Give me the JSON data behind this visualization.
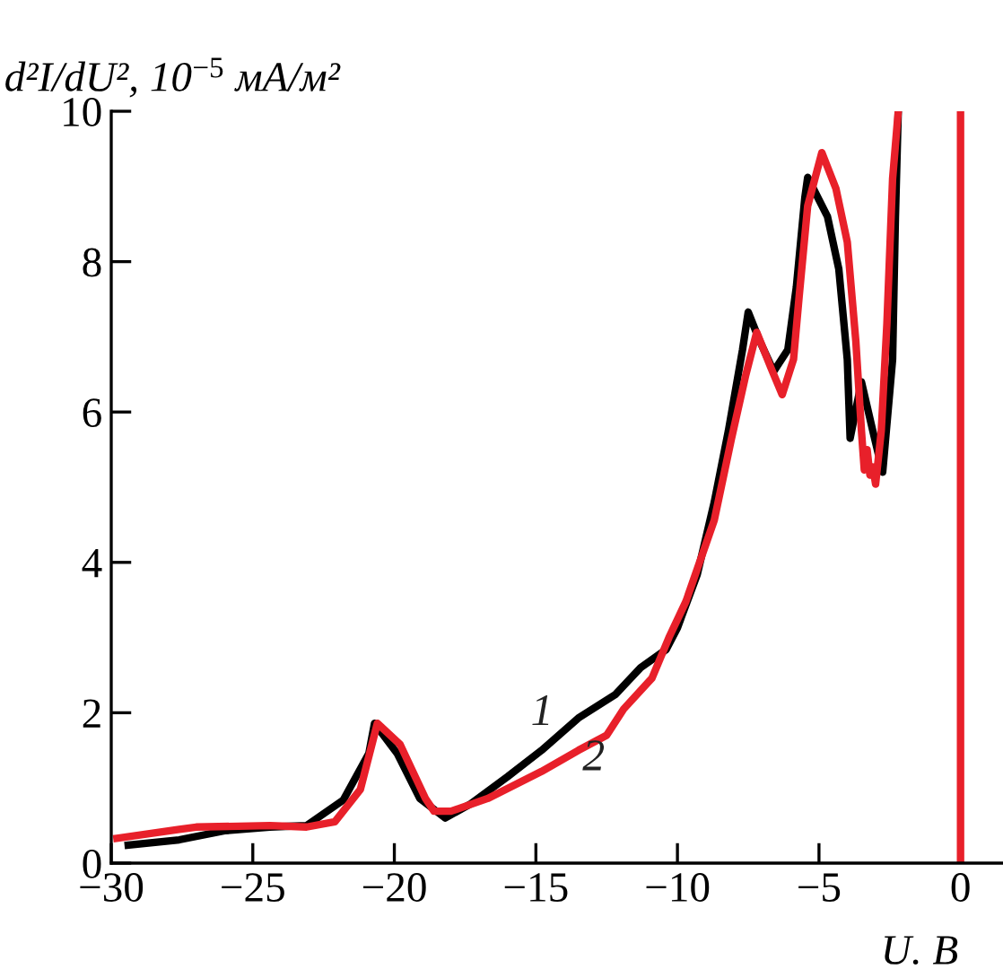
{
  "chart_data": {
    "type": "line",
    "ylabel": "d²I/dU², 10$^{−5}$ мА/м²",
    "xlabel": "U. В",
    "xlim": [
      -30,
      1.5
    ],
    "ylim": [
      0,
      10
    ],
    "xticks": [
      {
        "value": -30,
        "label": "−30"
      },
      {
        "value": -25,
        "label": "−25"
      },
      {
        "value": -20,
        "label": "−20"
      },
      {
        "value": -15,
        "label": "−15"
      },
      {
        "value": -10,
        "label": "−10"
      },
      {
        "value": -5,
        "label": "−5"
      },
      0
    ],
    "yticks": [
      0,
      2,
      4,
      6,
      8,
      10
    ],
    "grid": false,
    "marker": "none",
    "line_style": "solid",
    "series": [
      {
        "name": "1",
        "color": "#000000",
        "x": [
          -29.4,
          -27.6,
          -26,
          -24.4,
          -23.1,
          -21.8,
          -20.9,
          -20.7,
          -19.9,
          -19.1,
          -18.2,
          -17.3,
          -16.0,
          -14.8,
          -13.5,
          -12.2,
          -11.3,
          -10.4,
          -10.0,
          -9.3,
          -8.7,
          -8.2,
          -7.7,
          -7.5,
          -7.1,
          -6.6,
          -6.1,
          -5.8,
          -5.5,
          -5.4,
          -4.7,
          -4.3,
          -4.0,
          -3.9,
          -3.5,
          -3.1,
          -2.75,
          -2.4,
          -2.3,
          -2.2
        ],
        "values": [
          0.24,
          0.31,
          0.43,
          0.48,
          0.5,
          0.84,
          1.46,
          1.86,
          1.46,
          0.86,
          0.6,
          0.79,
          1.15,
          1.5,
          1.93,
          2.24,
          2.6,
          2.84,
          3.13,
          3.84,
          4.8,
          5.75,
          6.83,
          7.33,
          6.95,
          6.54,
          6.83,
          7.66,
          8.85,
          9.12,
          8.6,
          7.9,
          6.7,
          5.65,
          6.4,
          5.75,
          5.2,
          6.7,
          8.6,
          10
        ]
      },
      {
        "name": "2",
        "color": "#e8202a",
        "x": [
          -29.8,
          -27.6,
          -27,
          -24.4,
          -23.1,
          -22.1,
          -21.2,
          -20.6,
          -19.8,
          -18.9,
          -18.6,
          -18.0,
          -16.7,
          -14.8,
          -13.5,
          -12.5,
          -11.9,
          -10.9,
          -10.3,
          -9.7,
          -8.7,
          -8.1,
          -7.6,
          -7.2,
          -6.7,
          -6.3,
          -5.9,
          -5.7,
          -5.4,
          -4.9,
          -4.4,
          -4.0,
          -3.7,
          -3.5,
          -3.4,
          -3.3,
          -3.2,
          -3.1,
          -3.0,
          -2.8,
          -2.6,
          -2.4,
          -2.2
        ],
        "values": [
          0.33,
          0.45,
          0.48,
          0.5,
          0.48,
          0.55,
          0.98,
          1.86,
          1.58,
          0.86,
          0.69,
          0.69,
          0.86,
          1.22,
          1.5,
          1.7,
          2.05,
          2.46,
          3.0,
          3.48,
          4.56,
          5.63,
          6.47,
          7.06,
          6.59,
          6.23,
          6.7,
          7.54,
          8.74,
          9.45,
          8.97,
          8.26,
          6.95,
          5.75,
          5.23,
          5.5,
          5.16,
          5.27,
          5.04,
          5.75,
          7.18,
          9.1,
          10
        ]
      }
    ],
    "ref_lines": [
      {
        "axis": "x",
        "value": 0,
        "color": "#e8202a"
      }
    ]
  }
}
